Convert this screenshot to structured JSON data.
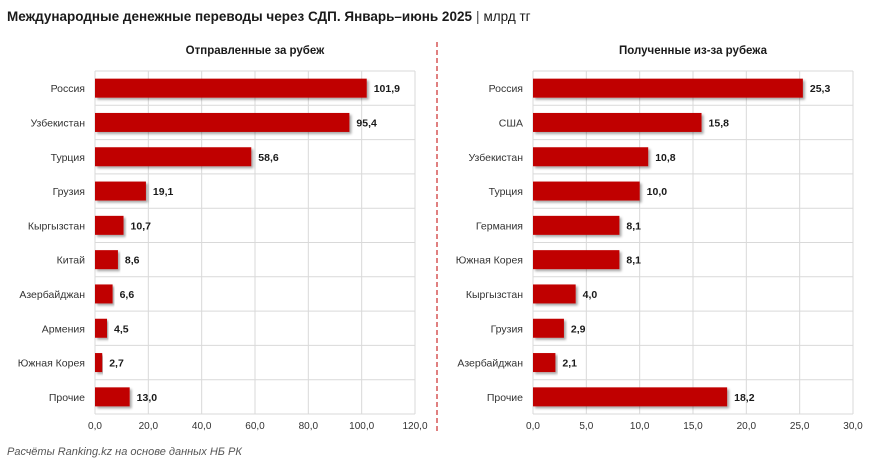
{
  "title": "Международные денежные переводы через СДП. Январь–июнь 2025",
  "unit": "млрд тг",
  "source": "Расчёты Ranking.kz на основе данных НБ РК",
  "colors": {
    "bar": "#c00000",
    "grid": "#d9d9d9",
    "divider": "#c00000"
  },
  "chart_data": [
    {
      "type": "bar",
      "orientation": "horizontal",
      "title": "Отправленные за рубеж",
      "categories": [
        "Россия",
        "Узбекистан",
        "Турция",
        "Грузия",
        "Кыргызстан",
        "Китай",
        "Азербайджан",
        "Армения",
        "Южная Корея",
        "Прочие"
      ],
      "values": [
        101.9,
        95.4,
        58.6,
        19.1,
        10.7,
        8.6,
        6.6,
        4.5,
        2.7,
        13.0
      ],
      "value_labels": [
        "101,9",
        "95,4",
        "58,6",
        "19,1",
        "10,7",
        "8,6",
        "6,6",
        "4,5",
        "2,7",
        "13,0"
      ],
      "xlim": [
        0,
        120
      ],
      "ticks": [
        0,
        20,
        40,
        60,
        80,
        100,
        120
      ],
      "tick_labels": [
        "0,0",
        "20,0",
        "40,0",
        "60,0",
        "80,0",
        "100,0",
        "120,0"
      ],
      "grid": true
    },
    {
      "type": "bar",
      "orientation": "horizontal",
      "title": "Полученные из-за рубежа",
      "categories": [
        "Россия",
        "США",
        "Узбекистан",
        "Турция",
        "Германия",
        "Южная Корея",
        "Кыргызстан",
        "Грузия",
        "Азербайджан",
        "Прочие"
      ],
      "values": [
        25.3,
        15.8,
        10.8,
        10.0,
        8.1,
        8.1,
        4.0,
        2.9,
        2.1,
        18.2
      ],
      "value_labels": [
        "25,3",
        "15,8",
        "10,8",
        "10,0",
        "8,1",
        "8,1",
        "4,0",
        "2,9",
        "2,1",
        "18,2"
      ],
      "xlim": [
        0,
        30
      ],
      "ticks": [
        0,
        5,
        10,
        15,
        20,
        25,
        30
      ],
      "tick_labels": [
        "0,0",
        "5,0",
        "10,0",
        "15,0",
        "20,0",
        "25,0",
        "30,0"
      ],
      "grid": true
    }
  ]
}
